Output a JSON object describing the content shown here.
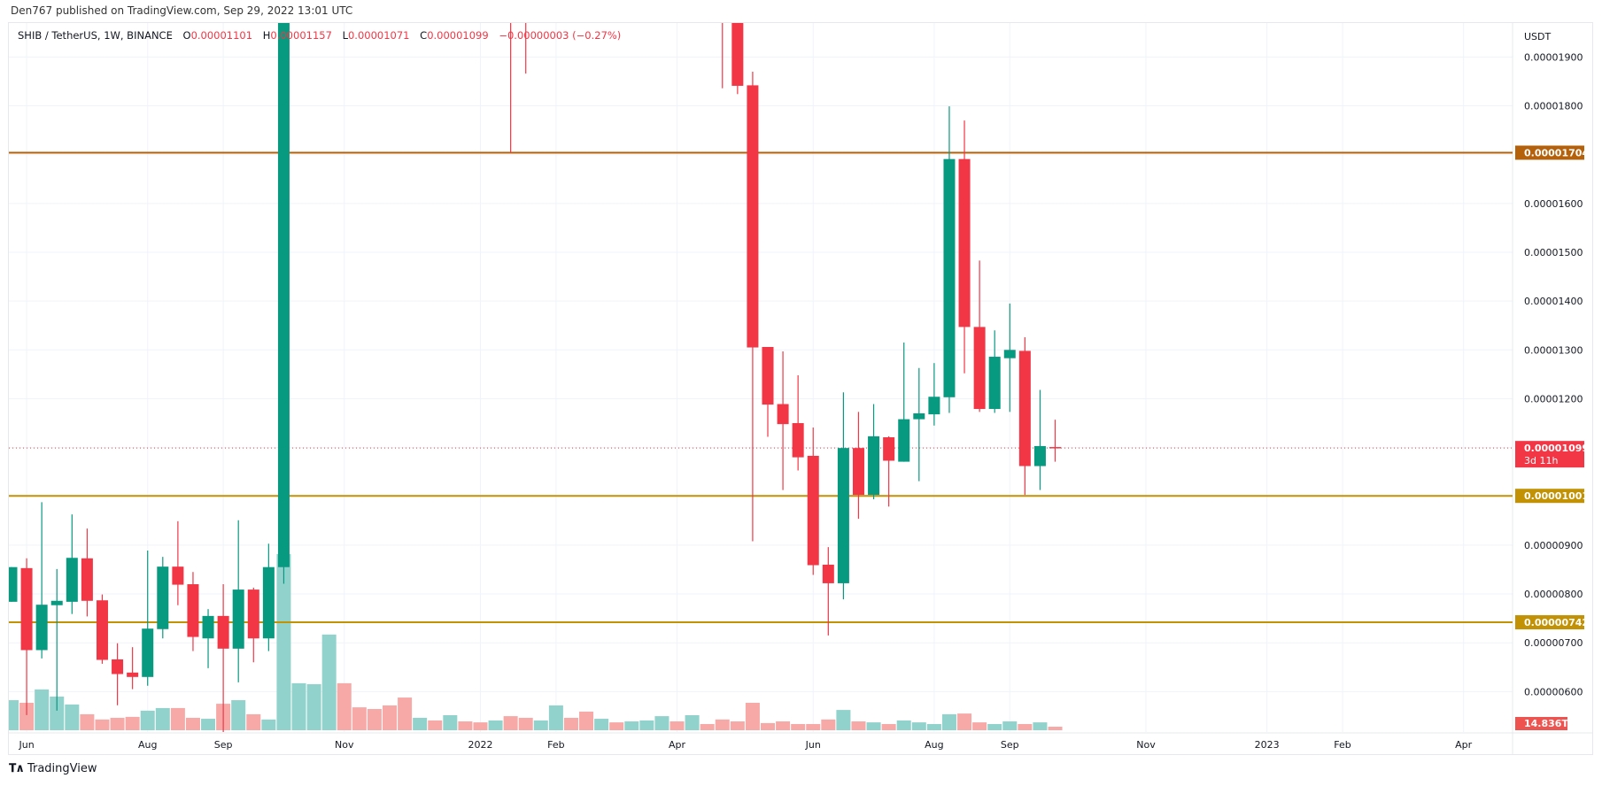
{
  "publish_line": "Den767 published on TradingView.com, Sep 29, 2022 13:01 UTC",
  "legend": {
    "symbol": "SHIB / TetherUS, 1W, BINANCE",
    "o_label": "O",
    "o": "0.00001101",
    "h_label": "H",
    "h": "0.00001157",
    "l_label": "L",
    "l": "0.00001071",
    "c_label": "C",
    "c": "0.00001099",
    "change": "−0.00000003 (−0.27%)"
  },
  "footer": {
    "logo_icon": "tradingview-logo-icon",
    "brand": "TradingView"
  },
  "colors": {
    "up": "#089981",
    "down": "#f23645",
    "vol_up": "#92d2cc",
    "vol_down": "#f7a9a7",
    "resistance": "#b5600b",
    "support": "#c29204",
    "grid": "#f0f3fa"
  },
  "chart_data": {
    "type": "candlestick",
    "title": "SHIB / TetherUS, 1W, BINANCE",
    "currency": "USDT",
    "y_ticks": [
      "0.00001900",
      "0.00001800",
      "0.00001600",
      "0.00001500",
      "0.00001400",
      "0.00001300",
      "0.00001200",
      "0.00000900",
      "0.00000800",
      "0.00000700",
      "0.00000600"
    ],
    "ylim": [
      5.8e-06,
      1.985e-05
    ],
    "x_ticks": [
      {
        "label": "Jun",
        "date": "2021-06-07"
      },
      {
        "label": "Aug",
        "date": "2021-08-02"
      },
      {
        "label": "Sep",
        "date": "2021-09-06"
      },
      {
        "label": "Nov",
        "date": "2021-11-01"
      },
      {
        "label": "2022",
        "date": "2022-01-03"
      },
      {
        "label": "Feb",
        "date": "2022-02-07"
      },
      {
        "label": "Apr",
        "date": "2022-04-04"
      },
      {
        "label": "Jun",
        "date": "2022-06-06"
      },
      {
        "label": "Aug",
        "date": "2022-08-01"
      },
      {
        "label": "Sep",
        "date": "2022-09-05"
      },
      {
        "label": "Nov",
        "date": "2022-11-07"
      },
      {
        "label": "2023",
        "date": "2023-01-02"
      },
      {
        "label": "Feb",
        "date": "2023-02-06"
      },
      {
        "label": "Apr",
        "date": "2023-04-03"
      }
    ],
    "fields": [
      "week",
      "open",
      "high",
      "low",
      "close",
      "volume_T",
      "dir"
    ],
    "candles": [
      [
        "2021-05-31",
        7.84e-06,
        8.55e-06,
        7.84e-06,
        8.55e-06,
        126,
        "u"
      ],
      [
        "2021-06-07",
        8.53e-06,
        8.73e-06,
        5.52e-06,
        6.85e-06,
        115,
        "d"
      ],
      [
        "2021-06-14",
        6.85e-06,
        9.88e-06,
        6.68e-06,
        7.78e-06,
        171,
        "u"
      ],
      [
        "2021-06-21",
        7.77e-06,
        8.51e-06,
        5.61e-06,
        7.86e-06,
        141,
        "u"
      ],
      [
        "2021-06-28",
        7.84e-06,
        9.63e-06,
        7.59e-06,
        8.74e-06,
        108,
        "u"
      ],
      [
        "2021-07-05",
        8.73e-06,
        9.34e-06,
        7.54e-06,
        7.86e-06,
        67,
        "d"
      ],
      [
        "2021-07-12",
        7.87e-06,
        7.99e-06,
        6.57e-06,
        6.65e-06,
        45,
        "d"
      ],
      [
        "2021-07-19",
        6.66e-06,
        6.99e-06,
        5.72e-06,
        6.36e-06,
        52,
        "d"
      ],
      [
        "2021-07-26",
        6.39e-06,
        6.91e-06,
        6.05e-06,
        6.3e-06,
        56,
        "d"
      ],
      [
        "2021-08-02",
        6.3e-06,
        8.89e-06,
        6.12e-06,
        7.29e-06,
        82,
        "u"
      ],
      [
        "2021-08-09",
        7.28e-06,
        8.76e-06,
        7.09e-06,
        8.56e-06,
        93,
        "u"
      ],
      [
        "2021-08-16",
        8.56e-06,
        9.49e-06,
        7.77e-06,
        8.19e-06,
        93,
        "d"
      ],
      [
        "2021-08-23",
        8.2e-06,
        8.45e-06,
        6.83e-06,
        7.12e-06,
        52,
        "d"
      ],
      [
        "2021-08-30",
        7.09e-06,
        7.69e-06,
        6.48e-06,
        7.55e-06,
        48,
        "u"
      ],
      [
        "2021-09-06",
        7.55e-06,
        8.2e-06,
        5.17e-06,
        6.88e-06,
        111,
        "d"
      ],
      [
        "2021-09-13",
        6.88e-06,
        9.51e-06,
        6.19e-06,
        8.09e-06,
        126,
        "u"
      ],
      [
        "2021-09-20",
        8.09e-06,
        8.13e-06,
        6.6e-06,
        7.09e-06,
        67,
        "d"
      ],
      [
        "2021-09-27",
        7.09e-06,
        9.03e-06,
        6.83e-06,
        8.55e-06,
        45,
        "u"
      ],
      [
        "2021-10-04",
        8.55e-06,
        null,
        8.21e-06,
        null,
        738,
        "u"
      ],
      [
        "2021-10-11",
        null,
        null,
        null,
        null,
        197,
        "u"
      ],
      [
        "2021-10-18",
        null,
        null,
        null,
        null,
        193,
        "u"
      ],
      [
        "2021-10-25",
        null,
        null,
        null,
        null,
        401,
        "u"
      ],
      [
        "2021-11-01",
        null,
        null,
        null,
        null,
        197,
        "d"
      ],
      [
        "2021-11-08",
        null,
        null,
        null,
        null,
        96,
        "d"
      ],
      [
        "2021-11-15",
        null,
        null,
        null,
        null,
        89,
        "d"
      ],
      [
        "2021-11-22",
        null,
        null,
        null,
        null,
        104,
        "d"
      ],
      [
        "2021-11-29",
        null,
        null,
        null,
        null,
        137,
        "d"
      ],
      [
        "2021-12-06",
        null,
        null,
        null,
        null,
        52,
        "u"
      ],
      [
        "2021-12-13",
        null,
        null,
        null,
        null,
        41,
        "d"
      ],
      [
        "2021-12-20",
        null,
        null,
        null,
        null,
        63,
        "u"
      ],
      [
        "2021-12-27",
        null,
        null,
        null,
        null,
        37,
        "d"
      ],
      [
        "2022-01-03",
        null,
        null,
        null,
        null,
        33,
        "d"
      ],
      [
        "2022-01-10",
        null,
        null,
        null,
        null,
        41,
        "u"
      ],
      [
        "2022-01-17",
        null,
        null,
        1.704e-05,
        null,
        59,
        "d"
      ],
      [
        "2022-01-24",
        null,
        null,
        1.866e-05,
        null,
        52,
        "d"
      ],
      [
        "2022-01-31",
        null,
        null,
        null,
        null,
        41,
        "u"
      ],
      [
        "2022-02-07",
        null,
        null,
        null,
        null,
        104,
        "u"
      ],
      [
        "2022-02-14",
        null,
        null,
        null,
        null,
        52,
        "d"
      ],
      [
        "2022-02-21",
        null,
        null,
        null,
        null,
        78,
        "d"
      ],
      [
        "2022-02-28",
        null,
        null,
        null,
        null,
        48,
        "u"
      ],
      [
        "2022-03-07",
        null,
        null,
        null,
        null,
        33,
        "d"
      ],
      [
        "2022-03-14",
        null,
        null,
        null,
        null,
        37,
        "u"
      ],
      [
        "2022-03-21",
        null,
        null,
        null,
        null,
        41,
        "u"
      ],
      [
        "2022-03-28",
        null,
        null,
        null,
        null,
        59,
        "u"
      ],
      [
        "2022-04-04",
        null,
        null,
        null,
        null,
        37,
        "d"
      ],
      [
        "2022-04-11",
        null,
        null,
        null,
        null,
        63,
        "u"
      ],
      [
        "2022-04-18",
        null,
        null,
        null,
        null,
        26,
        "d"
      ],
      [
        "2022-04-25",
        null,
        null,
        1.836e-05,
        null,
        45,
        "d"
      ],
      [
        "2022-05-02",
        null,
        null,
        1.824e-05,
        1.841e-05,
        37,
        "d"
      ],
      [
        "2022-05-09",
        1.842e-05,
        1.87e-05,
        9.08e-06,
        1.305e-05,
        115,
        "d"
      ],
      [
        "2022-05-16",
        1.306e-05,
        1.306e-05,
        1.122e-05,
        1.188e-05,
        30,
        "d"
      ],
      [
        "2022-05-23",
        1.189e-05,
        1.297e-05,
        1.013e-05,
        1.148e-05,
        37,
        "d"
      ],
      [
        "2022-05-30",
        1.15e-05,
        1.248e-05,
        1.053e-05,
        1.08e-05,
        26,
        "d"
      ],
      [
        "2022-06-06",
        1.083e-05,
        1.141e-05,
        8.39e-06,
        8.59e-06,
        26,
        "d"
      ],
      [
        "2022-06-13",
        8.6e-06,
        8.96e-06,
        7.15e-06,
        8.22e-06,
        45,
        "d"
      ],
      [
        "2022-06-20",
        8.22e-06,
        1.213e-05,
        7.89e-06,
        1.099e-05,
        85,
        "u"
      ],
      [
        "2022-06-27",
        1.099e-05,
        1.173e-05,
        9.54e-06,
        1.003e-05,
        37,
        "d"
      ],
      [
        "2022-07-04",
        1.003e-05,
        1.189e-05,
        9.94e-06,
        1.123e-05,
        33,
        "u"
      ],
      [
        "2022-07-11",
        1.121e-05,
        1.123e-05,
        9.79e-06,
        1.073e-05,
        26,
        "d"
      ],
      [
        "2022-07-18",
        1.071e-05,
        1.315e-05,
        1.071e-05,
        1.158e-05,
        41,
        "u"
      ],
      [
        "2022-07-25",
        1.158e-05,
        1.263e-05,
        1.031e-05,
        1.17e-05,
        33,
        "u"
      ],
      [
        "2022-08-01",
        1.168e-05,
        1.273e-05,
        1.145e-05,
        1.204e-05,
        26,
        "u"
      ],
      [
        "2022-08-08",
        1.203e-05,
        1.799e-05,
        1.171e-05,
        1.691e-05,
        67,
        "u"
      ],
      [
        "2022-08-15",
        1.691e-05,
        1.77e-05,
        1.252e-05,
        1.347e-05,
        70,
        "d"
      ],
      [
        "2022-08-22",
        1.347e-05,
        1.483e-05,
        1.173e-05,
        1.179e-05,
        33,
        "d"
      ],
      [
        "2022-08-29",
        1.179e-05,
        1.34e-05,
        1.171e-05,
        1.286e-05,
        26,
        "u"
      ],
      [
        "2022-09-05",
        1.283e-05,
        1.395e-05,
        1.173e-05,
        1.3e-05,
        37,
        "u"
      ],
      [
        "2022-09-12",
        1.298e-05,
        1.326e-05,
        1.003e-05,
        1.062e-05,
        26,
        "d"
      ],
      [
        "2022-09-19",
        1.062e-05,
        1.218e-05,
        1.013e-05,
        1.103e-05,
        33,
        "u"
      ],
      [
        "2022-09-26",
        1.101e-05,
        1.157e-05,
        1.071e-05,
        1.099e-05,
        14.836,
        "d"
      ]
    ],
    "levels": [
      {
        "label": "0.00001704",
        "value": 1.704e-05,
        "kind": "resistance"
      },
      {
        "label": "0.00001001",
        "value": 1.001e-05,
        "kind": "support"
      },
      {
        "label": "0.00000742",
        "value": 7.42e-06,
        "kind": "support"
      }
    ],
    "last_price": {
      "label": "0.00001099",
      "value": 1.099e-05,
      "countdown": "3d 11h"
    },
    "last_volume_label": "14.836T",
    "grid": true
  }
}
